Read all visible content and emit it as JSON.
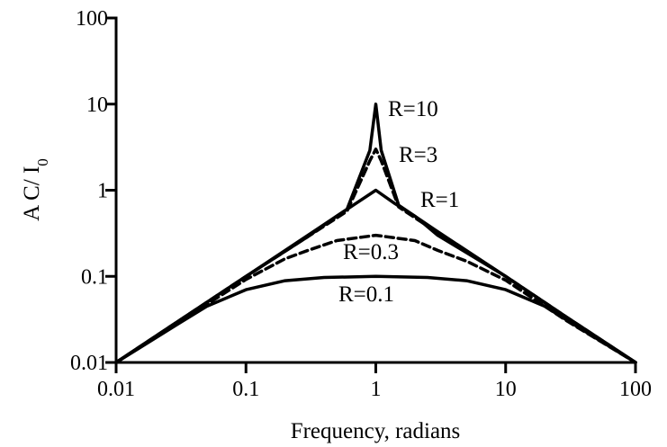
{
  "chart_data": {
    "type": "line",
    "title": "",
    "xlabel": "Frequency, radians",
    "ylabel": "A C/ I",
    "ylabel_subscript": "0",
    "xscale": "log",
    "yscale": "log",
    "xlim": [
      0.01,
      100
    ],
    "ylim": [
      0.01,
      100
    ],
    "x_ticks": [
      0.01,
      0.1,
      1,
      10,
      100
    ],
    "x_tick_labels": [
      "0.01",
      "0.1",
      "1",
      "10",
      "100"
    ],
    "y_ticks": [
      0.01,
      0.1,
      1,
      10,
      100
    ],
    "y_tick_labels": [
      "0.01",
      "0.1",
      "1",
      "10",
      "100"
    ],
    "grid": false,
    "legend": "none",
    "series": [
      {
        "name": "R=10",
        "dash": "solid",
        "x": [
          0.01,
          0.03,
          0.1,
          0.3,
          0.6,
          0.9,
          1.0,
          1.1,
          1.5,
          3,
          10,
          30,
          100
        ],
        "y": [
          0.01,
          0.03,
          0.1,
          0.3,
          0.6,
          2.9,
          10,
          2.9,
          0.67,
          0.33,
          0.1,
          0.033,
          0.01
        ]
      },
      {
        "name": "R=3",
        "dash": "dashed",
        "x": [
          0.01,
          0.03,
          0.1,
          0.3,
          0.6,
          0.9,
          1.0,
          1.1,
          1.5,
          3,
          10,
          30,
          100
        ],
        "y": [
          0.01,
          0.03,
          0.1,
          0.29,
          0.57,
          2.2,
          3,
          2.2,
          0.64,
          0.32,
          0.1,
          0.033,
          0.01
        ]
      },
      {
        "name": "R=1",
        "dash": "solid",
        "x": [
          0.01,
          0.03,
          0.1,
          0.3,
          0.5,
          0.7,
          1.0,
          1.4,
          2,
          3,
          10,
          30,
          100
        ],
        "y": [
          0.01,
          0.03,
          0.1,
          0.29,
          0.5,
          0.7,
          1.0,
          0.7,
          0.5,
          0.3,
          0.1,
          0.033,
          0.01
        ]
      },
      {
        "name": "R=0.3",
        "dash": "dashed",
        "x": [
          0.01,
          0.03,
          0.1,
          0.2,
          0.3,
          0.5,
          1.0,
          2,
          3,
          5,
          10,
          30,
          100
        ],
        "y": [
          0.01,
          0.029,
          0.092,
          0.16,
          0.2,
          0.26,
          0.3,
          0.26,
          0.2,
          0.15,
          0.09,
          0.03,
          0.01
        ]
      },
      {
        "name": "R=0.1",
        "dash": "solid",
        "x": [
          0.01,
          0.03,
          0.05,
          0.1,
          0.2,
          0.4,
          1.0,
          2.5,
          5,
          10,
          20,
          33,
          100
        ],
        "y": [
          0.01,
          0.028,
          0.045,
          0.07,
          0.089,
          0.097,
          0.1,
          0.097,
          0.089,
          0.07,
          0.045,
          0.028,
          0.01
        ]
      }
    ]
  }
}
